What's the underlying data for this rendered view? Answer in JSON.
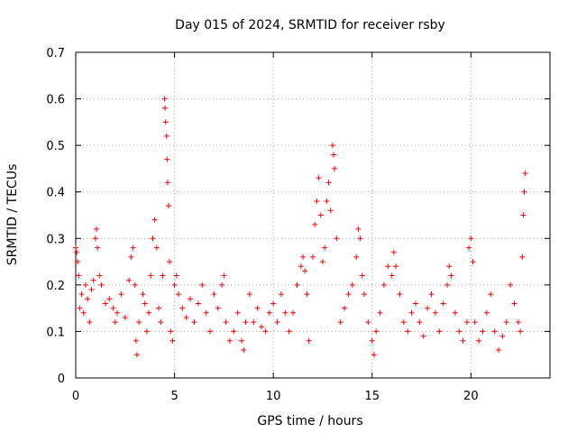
{
  "chart_data": {
    "type": "scatter",
    "title": "Day 015 of 2024, SRMTID for receiver rsby",
    "xlabel": "GPS time / hours",
    "ylabel": "SRMTID / TECUs",
    "xlim": [
      0,
      24
    ],
    "ylim": [
      0,
      0.7
    ],
    "x_ticks": [
      0,
      5,
      10,
      15,
      20
    ],
    "y_ticks": [
      0,
      0.1,
      0.2,
      0.3,
      0.4,
      0.5,
      0.6,
      0.7
    ],
    "x_tick_labels": [
      "0",
      "5",
      "10",
      "15",
      "20"
    ],
    "y_tick_labels": [
      "0",
      "0.1",
      "0.2",
      "0.3",
      "0.4",
      "0.5",
      "0.6",
      "0.7"
    ],
    "grid": true,
    "marker": "+",
    "color": "#ff0000",
    "series": [
      {
        "name": "SRMTID",
        "points": [
          [
            0.0,
            0.28
          ],
          [
            0.05,
            0.27
          ],
          [
            0.1,
            0.25
          ],
          [
            0.15,
            0.22
          ],
          [
            0.2,
            0.15
          ],
          [
            0.3,
            0.18
          ],
          [
            0.4,
            0.14
          ],
          [
            0.5,
            0.2
          ],
          [
            0.6,
            0.17
          ],
          [
            0.7,
            0.12
          ],
          [
            0.8,
            0.19
          ],
          [
            0.9,
            0.21
          ],
          [
            1.0,
            0.3
          ],
          [
            1.05,
            0.32
          ],
          [
            1.1,
            0.28
          ],
          [
            1.2,
            0.22
          ],
          [
            1.3,
            0.2
          ],
          [
            1.5,
            0.16
          ],
          [
            1.7,
            0.17
          ],
          [
            1.9,
            0.15
          ],
          [
            2.0,
            0.12
          ],
          [
            2.1,
            0.14
          ],
          [
            2.3,
            0.18
          ],
          [
            2.5,
            0.13
          ],
          [
            2.7,
            0.21
          ],
          [
            2.8,
            0.26
          ],
          [
            2.9,
            0.28
          ],
          [
            3.0,
            0.2
          ],
          [
            3.05,
            0.08
          ],
          [
            3.1,
            0.05
          ],
          [
            3.2,
            0.12
          ],
          [
            3.4,
            0.18
          ],
          [
            3.5,
            0.16
          ],
          [
            3.6,
            0.1
          ],
          [
            3.7,
            0.14
          ],
          [
            3.8,
            0.22
          ],
          [
            3.9,
            0.3
          ],
          [
            4.0,
            0.34
          ],
          [
            4.1,
            0.28
          ],
          [
            4.2,
            0.15
          ],
          [
            4.3,
            0.12
          ],
          [
            4.4,
            0.22
          ],
          [
            4.5,
            0.6
          ],
          [
            4.52,
            0.58
          ],
          [
            4.55,
            0.55
          ],
          [
            4.6,
            0.52
          ],
          [
            4.62,
            0.47
          ],
          [
            4.65,
            0.42
          ],
          [
            4.7,
            0.37
          ],
          [
            4.75,
            0.25
          ],
          [
            4.8,
            0.1
          ],
          [
            4.9,
            0.08
          ],
          [
            5.0,
            0.2
          ],
          [
            5.1,
            0.22
          ],
          [
            5.2,
            0.18
          ],
          [
            5.4,
            0.15
          ],
          [
            5.6,
            0.13
          ],
          [
            5.8,
            0.17
          ],
          [
            6.0,
            0.12
          ],
          [
            6.2,
            0.16
          ],
          [
            6.4,
            0.2
          ],
          [
            6.6,
            0.14
          ],
          [
            6.8,
            0.1
          ],
          [
            7.0,
            0.18
          ],
          [
            7.2,
            0.15
          ],
          [
            7.4,
            0.2
          ],
          [
            7.5,
            0.22
          ],
          [
            7.6,
            0.12
          ],
          [
            7.8,
            0.08
          ],
          [
            8.0,
            0.1
          ],
          [
            8.2,
            0.14
          ],
          [
            8.4,
            0.08
          ],
          [
            8.5,
            0.06
          ],
          [
            8.6,
            0.12
          ],
          [
            8.8,
            0.18
          ],
          [
            9.0,
            0.12
          ],
          [
            9.2,
            0.15
          ],
          [
            9.4,
            0.11
          ],
          [
            9.6,
            0.1
          ],
          [
            9.8,
            0.14
          ],
          [
            10.0,
            0.16
          ],
          [
            10.2,
            0.12
          ],
          [
            10.4,
            0.18
          ],
          [
            10.6,
            0.14
          ],
          [
            10.8,
            0.1
          ],
          [
            11.0,
            0.14
          ],
          [
            11.2,
            0.2
          ],
          [
            11.4,
            0.24
          ],
          [
            11.5,
            0.26
          ],
          [
            11.6,
            0.23
          ],
          [
            11.7,
            0.18
          ],
          [
            11.8,
            0.08
          ],
          [
            12.0,
            0.26
          ],
          [
            12.1,
            0.33
          ],
          [
            12.2,
            0.38
          ],
          [
            12.3,
            0.43
          ],
          [
            12.4,
            0.35
          ],
          [
            12.5,
            0.25
          ],
          [
            12.6,
            0.28
          ],
          [
            12.7,
            0.38
          ],
          [
            12.8,
            0.42
          ],
          [
            12.9,
            0.36
          ],
          [
            13.0,
            0.5
          ],
          [
            13.05,
            0.48
          ],
          [
            13.1,
            0.45
          ],
          [
            13.2,
            0.3
          ],
          [
            13.4,
            0.12
          ],
          [
            13.6,
            0.15
          ],
          [
            13.8,
            0.18
          ],
          [
            14.0,
            0.2
          ],
          [
            14.2,
            0.26
          ],
          [
            14.3,
            0.32
          ],
          [
            14.4,
            0.3
          ],
          [
            14.5,
            0.22
          ],
          [
            14.6,
            0.18
          ],
          [
            14.8,
            0.12
          ],
          [
            15.0,
            0.08
          ],
          [
            15.1,
            0.05
          ],
          [
            15.2,
            0.1
          ],
          [
            15.4,
            0.14
          ],
          [
            15.6,
            0.2
          ],
          [
            15.8,
            0.24
          ],
          [
            16.0,
            0.22
          ],
          [
            16.1,
            0.27
          ],
          [
            16.2,
            0.24
          ],
          [
            16.4,
            0.18
          ],
          [
            16.6,
            0.12
          ],
          [
            16.8,
            0.1
          ],
          [
            17.0,
            0.14
          ],
          [
            17.2,
            0.16
          ],
          [
            17.4,
            0.12
          ],
          [
            17.6,
            0.09
          ],
          [
            17.8,
            0.15
          ],
          [
            18.0,
            0.18
          ],
          [
            18.2,
            0.14
          ],
          [
            18.4,
            0.1
          ],
          [
            18.6,
            0.16
          ],
          [
            18.8,
            0.2
          ],
          [
            18.9,
            0.24
          ],
          [
            19.0,
            0.22
          ],
          [
            19.2,
            0.14
          ],
          [
            19.4,
            0.1
          ],
          [
            19.6,
            0.08
          ],
          [
            19.8,
            0.12
          ],
          [
            19.9,
            0.28
          ],
          [
            20.0,
            0.3
          ],
          [
            20.1,
            0.25
          ],
          [
            20.2,
            0.12
          ],
          [
            20.4,
            0.08
          ],
          [
            20.6,
            0.1
          ],
          [
            20.8,
            0.14
          ],
          [
            21.0,
            0.18
          ],
          [
            21.2,
            0.1
          ],
          [
            21.4,
            0.06
          ],
          [
            21.6,
            0.09
          ],
          [
            21.8,
            0.12
          ],
          [
            22.0,
            0.2
          ],
          [
            22.2,
            0.16
          ],
          [
            22.4,
            0.12
          ],
          [
            22.5,
            0.1
          ],
          [
            22.6,
            0.26
          ],
          [
            22.65,
            0.35
          ],
          [
            22.7,
            0.4
          ],
          [
            22.75,
            0.44
          ]
        ]
      }
    ]
  }
}
